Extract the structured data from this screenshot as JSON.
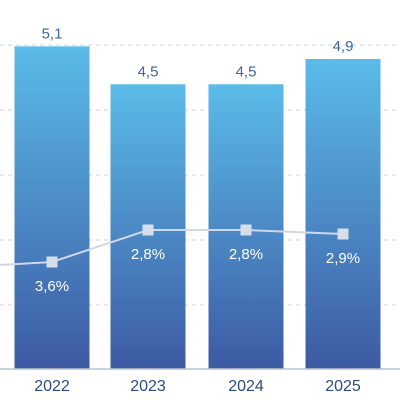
{
  "chart_data": {
    "type": "bar",
    "categories": [
      "2022",
      "2023",
      "2024",
      "2025"
    ],
    "series": [
      {
        "type": "bar",
        "values": [
          5.1,
          4.5,
          4.5,
          4.9
        ],
        "value_labels": [
          "5,1",
          "4,5",
          "4,5",
          "4,9"
        ]
      },
      {
        "type": "line",
        "values": [
          3.6,
          2.8,
          2.8,
          2.9
        ],
        "value_labels": [
          "3,6%",
          "2,8%",
          "2,8%",
          "2,9%"
        ],
        "previous_value": 3.6
      }
    ],
    "ylim": [
      0,
      5.2
    ],
    "grid": true,
    "colors": {
      "bar_top": "#5bbbe9",
      "bar_bottom": "#3d5aa3",
      "line": "#cfd8e8",
      "marker": "#d7deeb",
      "bar_label": "#3a66a8",
      "tick_label": "#2b4a86"
    }
  }
}
